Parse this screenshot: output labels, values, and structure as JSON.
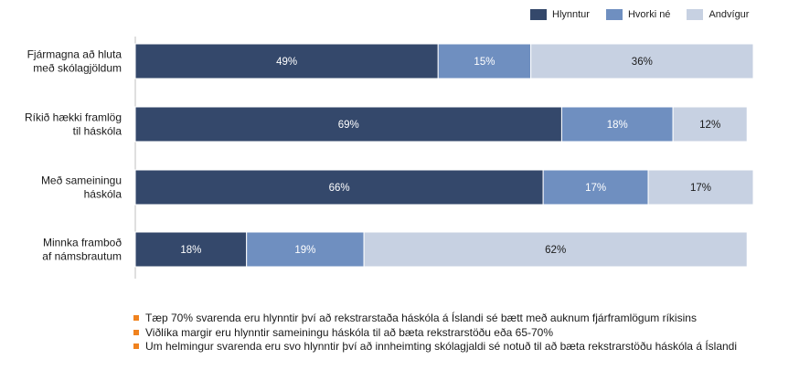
{
  "colors": {
    "hlynntur": "#34486b",
    "hvorki": "#6f8fc0",
    "andvigur": "#c7d1e2",
    "bullet": "#f0821e"
  },
  "chart_data": {
    "type": "bar",
    "orientation": "horizontal",
    "stacked": true,
    "categories": [
      [
        "Fjármagna að hluta",
        "með skólagjöldum"
      ],
      [
        "Ríkið hækki framlög",
        "til háskóla"
      ],
      [
        "Með sameiningu",
        "háskóla"
      ],
      [
        "Minnka framboð",
        "af námsbrautum"
      ]
    ],
    "series": [
      {
        "name": "Hlynntur",
        "values": [
          49,
          69,
          66,
          18
        ],
        "labels": [
          "49%",
          "69%",
          "66%",
          "18%"
        ],
        "color": "#34486b"
      },
      {
        "name": "Hvorki né",
        "values": [
          15,
          18,
          17,
          19
        ],
        "labels": [
          "15%",
          "18%",
          "17%",
          "19%"
        ],
        "color": "#6f8fc0"
      },
      {
        "name": "Andvígur",
        "values": [
          36,
          12,
          17,
          62
        ],
        "labels": [
          "36%",
          "12%",
          "17%",
          "62%"
        ],
        "color": "#c7d1e2"
      }
    ],
    "xlim": [
      0,
      100
    ],
    "legend_position": "top-right",
    "grid": false
  },
  "bullets": [
    "Tæp 70% svarenda eru hlynntir því að rekstrarstaða háskóla á Íslandi sé bætt með auknum fjárframlögum ríkisins",
    "Viðlíka margir eru hlynntir sameiningu háskóla til að bæta rekstrarstöðu eða 65-70%",
    "Um helmingur svarenda eru svo hlynntir því að innheimting skólagjaldi sé notuð til að bæta rekstrarstöðu háskóla á Íslandi"
  ]
}
